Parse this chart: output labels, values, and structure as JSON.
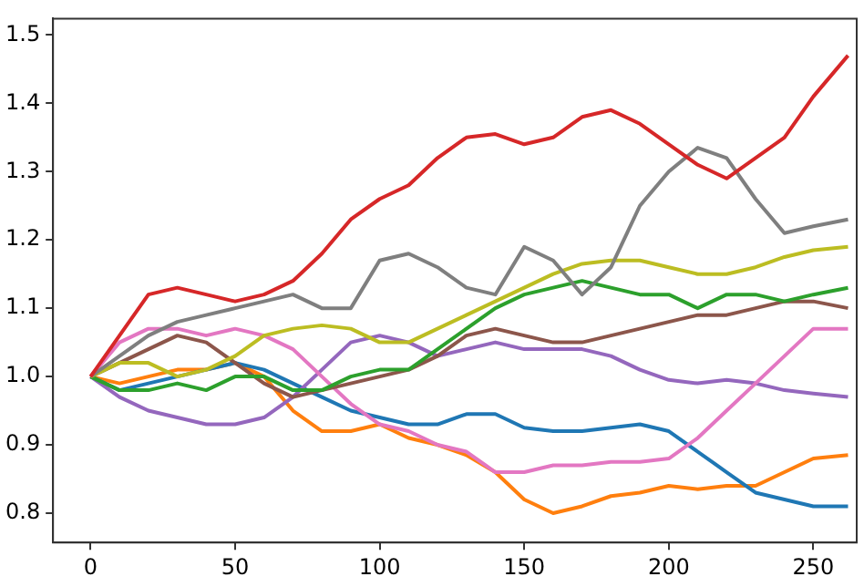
{
  "chart_data": {
    "type": "line",
    "x": [
      0,
      10,
      20,
      30,
      40,
      50,
      60,
      70,
      80,
      90,
      100,
      110,
      120,
      130,
      140,
      150,
      160,
      170,
      180,
      190,
      200,
      210,
      220,
      230,
      240,
      250,
      262
    ],
    "series": [
      {
        "color": "#d62728",
        "values": [
          1.0,
          1.06,
          1.12,
          1.13,
          1.12,
          1.11,
          1.12,
          1.14,
          1.18,
          1.23,
          1.26,
          1.28,
          1.32,
          1.35,
          1.355,
          1.34,
          1.35,
          1.38,
          1.39,
          1.37,
          1.34,
          1.31,
          1.29,
          1.32,
          1.35,
          1.41,
          1.47
        ]
      },
      {
        "color": "#7f7f7f",
        "values": [
          1.0,
          1.03,
          1.06,
          1.08,
          1.09,
          1.1,
          1.11,
          1.12,
          1.1,
          1.1,
          1.17,
          1.18,
          1.16,
          1.13,
          1.12,
          1.19,
          1.17,
          1.12,
          1.16,
          1.25,
          1.3,
          1.335,
          1.32,
          1.26,
          1.21,
          1.22,
          1.23
        ]
      },
      {
        "color": "#bcbd22",
        "values": [
          1.0,
          1.02,
          1.02,
          1.0,
          1.01,
          1.03,
          1.06,
          1.07,
          1.075,
          1.07,
          1.05,
          1.05,
          1.07,
          1.09,
          1.11,
          1.13,
          1.15,
          1.165,
          1.17,
          1.17,
          1.16,
          1.15,
          1.15,
          1.16,
          1.175,
          1.185,
          1.19
        ]
      },
      {
        "color": "#2ca02c",
        "values": [
          1.0,
          0.98,
          0.98,
          0.99,
          0.98,
          1.0,
          1.0,
          0.98,
          0.98,
          1.0,
          1.01,
          1.01,
          1.04,
          1.07,
          1.1,
          1.12,
          1.13,
          1.14,
          1.13,
          1.12,
          1.12,
          1.1,
          1.12,
          1.12,
          1.11,
          1.12,
          1.13
        ]
      },
      {
        "color": "#8c564b",
        "values": [
          1.0,
          1.02,
          1.04,
          1.06,
          1.05,
          1.02,
          0.99,
          0.97,
          0.98,
          0.99,
          1.0,
          1.01,
          1.03,
          1.06,
          1.07,
          1.06,
          1.05,
          1.05,
          1.06,
          1.07,
          1.08,
          1.09,
          1.09,
          1.1,
          1.11,
          1.11,
          1.1
        ]
      },
      {
        "color": "#e377c2",
        "values": [
          1.0,
          1.05,
          1.07,
          1.07,
          1.06,
          1.07,
          1.06,
          1.04,
          1.0,
          0.96,
          0.93,
          0.92,
          0.9,
          0.89,
          0.86,
          0.86,
          0.87,
          0.87,
          0.875,
          0.875,
          0.88,
          0.91,
          0.95,
          0.99,
          1.03,
          1.07,
          1.07
        ]
      },
      {
        "color": "#9467bd",
        "values": [
          1.0,
          0.97,
          0.95,
          0.94,
          0.93,
          0.93,
          0.94,
          0.97,
          1.01,
          1.05,
          1.06,
          1.05,
          1.03,
          1.04,
          1.05,
          1.04,
          1.04,
          1.04,
          1.03,
          1.01,
          0.995,
          0.99,
          0.995,
          0.99,
          0.98,
          0.975,
          0.97
        ]
      },
      {
        "color": "#1f77b4",
        "values": [
          1.0,
          0.98,
          0.99,
          1.0,
          1.01,
          1.02,
          1.01,
          0.99,
          0.97,
          0.95,
          0.94,
          0.93,
          0.93,
          0.945,
          0.945,
          0.925,
          0.92,
          0.92,
          0.925,
          0.93,
          0.92,
          0.89,
          0.86,
          0.83,
          0.82,
          0.81,
          0.81
        ]
      },
      {
        "color": "#ff7f0e",
        "values": [
          1.0,
          0.99,
          1.0,
          1.01,
          1.01,
          1.02,
          1.0,
          0.95,
          0.92,
          0.92,
          0.93,
          0.91,
          0.9,
          0.885,
          0.86,
          0.82,
          0.8,
          0.81,
          0.825,
          0.83,
          0.84,
          0.835,
          0.84,
          0.84,
          0.86,
          0.88,
          0.885
        ]
      }
    ],
    "xlim": [
      -13,
      265
    ],
    "ylim": [
      0.757,
      1.524
    ],
    "xticks": [
      0,
      50,
      100,
      150,
      200,
      250
    ],
    "yticks": [
      {
        "value": 0.8,
        "label": "0.8"
      },
      {
        "value": 0.9,
        "label": "0.9"
      },
      {
        "value": 1.0,
        "label": "1.0"
      },
      {
        "value": 1.1,
        "label": "1.1"
      },
      {
        "value": 1.2,
        "label": "1.2"
      },
      {
        "value": 1.3,
        "label": "1.3"
      },
      {
        "value": 1.4,
        "label": "1.4"
      },
      {
        "value": 1.5,
        "label": "1.5"
      }
    ],
    "grid": false,
    "legend": false,
    "marker": "none",
    "line_style": "solid"
  }
}
